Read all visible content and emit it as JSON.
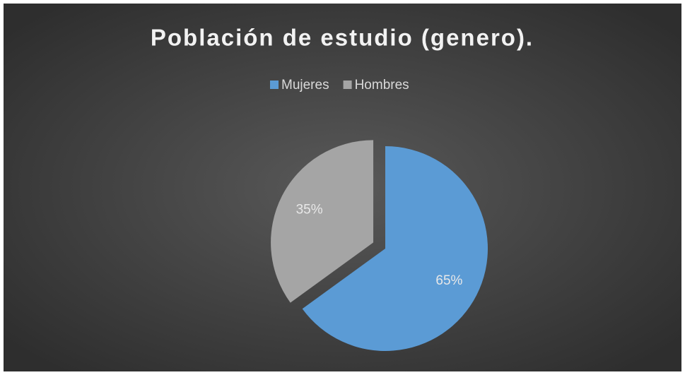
{
  "chart_data": {
    "type": "pie",
    "title": "Población de estudio (genero).",
    "categories": [
      "Mujeres",
      "Hombres"
    ],
    "values": [
      65,
      35
    ],
    "value_labels": [
      "65%",
      "35%"
    ],
    "colors": [
      "#5b9bd5",
      "#a5a5a5"
    ],
    "legend": "top",
    "exploded": [
      false,
      true
    ]
  }
}
